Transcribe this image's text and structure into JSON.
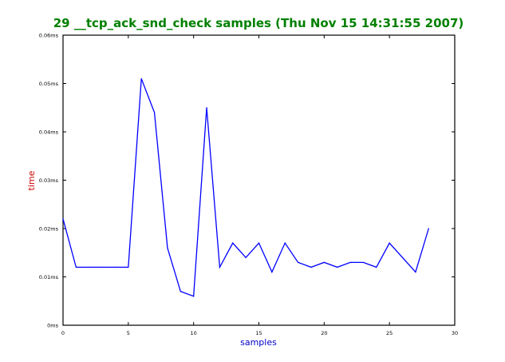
{
  "chart_data": {
    "type": "line",
    "title": "29 __tcp_ack_snd_check samples (Thu Nov 15 14:31:55 2007)",
    "xlabel": "samples",
    "ylabel": "time",
    "xlim": [
      0,
      30
    ],
    "ylim": [
      0,
      0.06
    ],
    "x_ticks": [
      "0",
      "5",
      "10",
      "15",
      "20",
      "25",
      "30"
    ],
    "y_ticks": [
      "0ms",
      "0.01ms",
      "0.02ms",
      "0.03ms",
      "0.04ms",
      "0.05ms",
      "0.06ms"
    ],
    "grid": false,
    "series": [
      {
        "x": [
          0,
          1,
          2,
          3,
          4,
          5,
          6,
          7,
          8,
          9,
          10,
          11,
          12,
          13,
          14,
          15,
          16,
          17,
          18,
          19,
          20,
          21,
          22,
          23,
          24,
          25,
          26,
          27,
          28
        ],
        "values": [
          0.022,
          0.012,
          0.012,
          0.012,
          0.012,
          0.012,
          0.051,
          0.044,
          0.016,
          0.007,
          0.006,
          0.045,
          0.012,
          0.017,
          0.014,
          0.017,
          0.011,
          0.017,
          0.013,
          0.012,
          0.013,
          0.012,
          0.013,
          0.013,
          0.012,
          0.017,
          0.014,
          0.011,
          0.02
        ],
        "color": "#0000ff"
      }
    ],
    "colors": {
      "title": "#008000",
      "xlabel": "#0000cd",
      "ylabel": "#cc0000",
      "line": "#0000ff"
    }
  }
}
